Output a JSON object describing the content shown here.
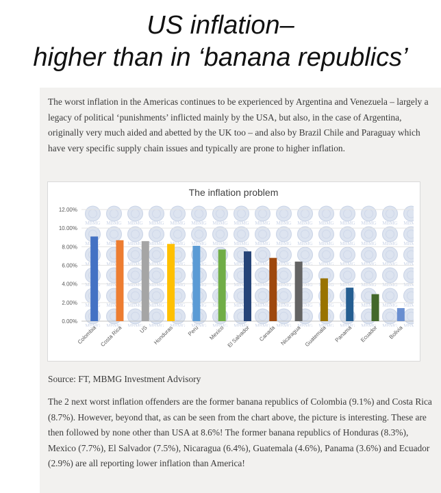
{
  "slide": {
    "title_line1": "US inflation–",
    "title_line2": "higher than in ‘banana republics’"
  },
  "article": {
    "paragraph1": "The worst inflation in the Americas continues to be experienced by Argentina and Venezuela – largely a legacy of political ‘punishments’ inflicted mainly by the USA, but also, in the case of Argentina, originally very much aided and abetted by the UK too – and also by Brazil Chile and Paraguay which have very specific supply chain issues and typically are prone to higher inflation.",
    "source": "Source: FT, MBMG Investment Advisory",
    "paragraph2": "The 2 next worst inflation offenders are the former banana republics of Colombia (9.1%) and Costa Rica (8.7%). However, beyond that, as can be seen from the chart above, the picture is interesting. These are then followed by none other than USA at 8.6%! The former banana republics of Honduras (8.3%), Mexico (7.7%), El Salvador (7.5%), Nicaragua (6.4%), Guatemala (4.6%), Panama (3.6%) and Ecuador (2.9%) are all reporting lower inflation than America!"
  },
  "chart_data": {
    "type": "bar",
    "title": "The inflation problem",
    "categories": [
      "Colombia",
      "Costa Rica",
      "US",
      "Honduras",
      "Peru",
      "Mexico",
      "El Salvador",
      "Canada",
      "Nicaragua",
      "Guatemala",
      "Panama",
      "Ecuador",
      "Bolivia"
    ],
    "values": [
      9.1,
      8.7,
      8.6,
      8.3,
      8.1,
      7.7,
      7.5,
      6.8,
      6.4,
      4.6,
      3.6,
      2.9,
      1.4
    ],
    "ylim": [
      0,
      12
    ],
    "yticks": [
      "0.00%",
      "2.00%",
      "4.00%",
      "6.00%",
      "8.00%",
      "10.00%",
      "12.00%"
    ],
    "grid": true,
    "legend": "none",
    "colors": [
      "#4472c4",
      "#ed7d31",
      "#a5a5a5",
      "#ffc000",
      "#5b9bd5",
      "#70ad47",
      "#264478",
      "#9e480e",
      "#636363",
      "#997300",
      "#255e91",
      "#43682b",
      "#698ed0"
    ],
    "watermark_text": "MBMG",
    "watermark_color": "#c9d3e6"
  }
}
